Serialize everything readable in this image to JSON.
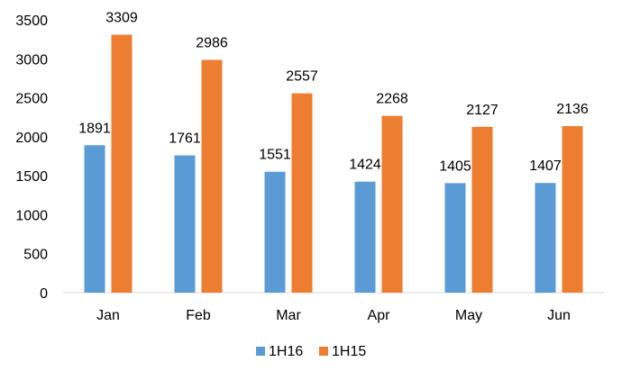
{
  "chart_data": {
    "type": "bar",
    "categories": [
      "Jan",
      "Feb",
      "Mar",
      "Apr",
      "May",
      "Jun"
    ],
    "series": [
      {
        "name": "1H16",
        "color": "#5B9BD5",
        "values": [
          1891,
          1761,
          1551,
          1424,
          1405,
          1407
        ]
      },
      {
        "name": "1H15",
        "color": "#ED7D31",
        "values": [
          3309,
          2986,
          2557,
          2268,
          2127,
          2136
        ]
      }
    ],
    "ylim": [
      0,
      3500
    ],
    "yticks": [
      0,
      500,
      1000,
      1500,
      2000,
      2500,
      3000,
      3500
    ],
    "grid": false,
    "legend": "bottom",
    "data_labels": true
  }
}
